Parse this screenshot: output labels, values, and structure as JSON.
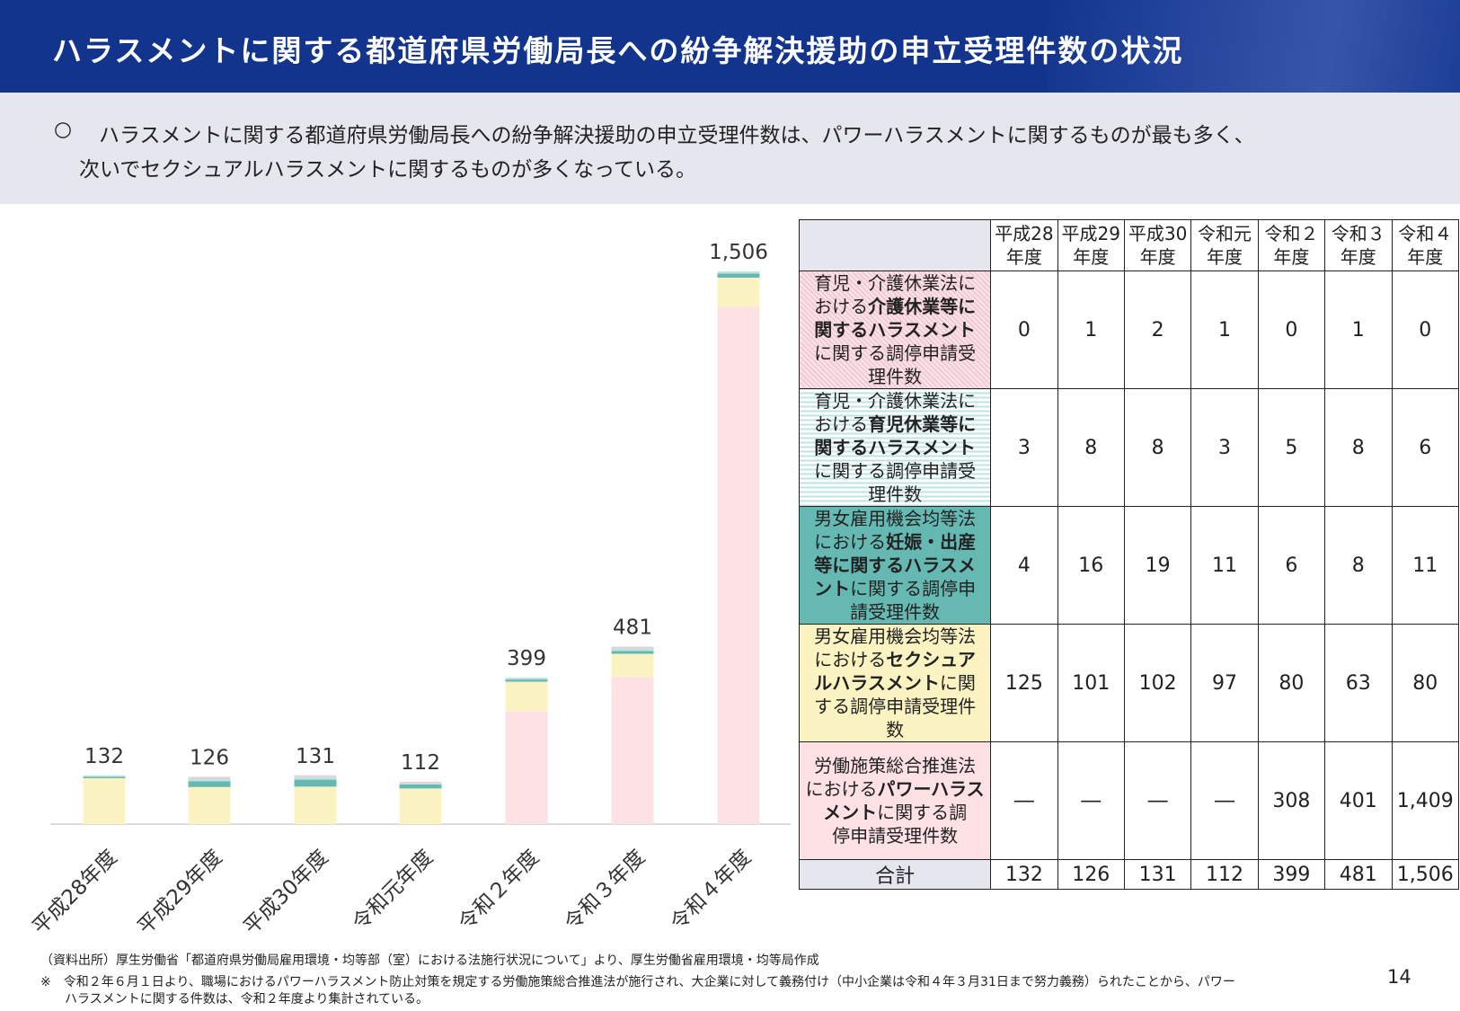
{
  "header": {
    "title": "ハラスメントに関する都道府県労働局長への紛争解決援助の申立受理件数の状況"
  },
  "summary": {
    "mark": "○",
    "line1": "ハラスメントに関する都道府県労働局長への紛争解決援助の申立受理件数は、パワーハラスメントに関するものが最も多く、",
    "line2": "次いでセクシュアルハラスメントに関するものが多くなっている。"
  },
  "colors": {
    "header_bg": "#13348c",
    "power": "#fde1e5",
    "sexual": "#fbf4c2",
    "pregnancy": "#66b8b2",
    "childcare": "#bfe3e0",
    "caregiving": "#f3c9d2"
  },
  "chart_data": {
    "type": "bar",
    "stacked": true,
    "categories": [
      "平成28年度",
      "平成29年度",
      "平成30年度",
      "令和元年度",
      "令和２年度",
      "令和３年度",
      "令和４年度"
    ],
    "series": [
      {
        "name": "労働施策総合推進法におけるパワーハラスメントに関する調停申請受理件数",
        "values": [
          0,
          0,
          0,
          0,
          308,
          401,
          1409
        ]
      },
      {
        "name": "男女雇用機会均等法におけるセクシュアルハラスメントに関する調停申請受理件数",
        "values": [
          125,
          101,
          102,
          97,
          80,
          63,
          80
        ]
      },
      {
        "name": "男女雇用機会均等法における妊娠・出産等に関するハラスメントに関する調停申請受理件数",
        "values": [
          4,
          16,
          19,
          11,
          6,
          8,
          11
        ]
      },
      {
        "name": "育児・介護休業法における育児休業等に関するハラスメントに関する調停申請受理件数",
        "values": [
          3,
          8,
          8,
          3,
          5,
          8,
          6
        ]
      },
      {
        "name": "育児・介護休業法における介護休業等に関するハラスメントに関する調停申請受理件数",
        "values": [
          0,
          1,
          2,
          1,
          0,
          1,
          0
        ]
      }
    ],
    "totals": [
      132,
      126,
      131,
      112,
      399,
      481,
      1506
    ],
    "total_labels": [
      "132",
      "126",
      "131",
      "112",
      "399",
      "481",
      "1,506"
    ],
    "ylim": [
      0,
      1620
    ],
    "title": "",
    "xlabel": "",
    "ylabel": ""
  },
  "table": {
    "headers": [
      [
        "平成28",
        "年度"
      ],
      [
        "平成29",
        "年度"
      ],
      [
        "平成30",
        "年度"
      ],
      [
        "令和元",
        "年度"
      ],
      [
        "令和２",
        "年度"
      ],
      [
        "令和３",
        "年度"
      ],
      [
        "令和４",
        "年度"
      ]
    ],
    "rows": [
      {
        "label": [
          "育児・介護休業法に",
          "おける",
          "介護休業等に",
          "関するハラスメント",
          "に関する調停申請受",
          "理件数"
        ],
        "values": [
          "0",
          "1",
          "2",
          "1",
          "0",
          "1",
          "0"
        ]
      },
      {
        "label": [
          "育児・介護休業法に",
          "おける",
          "育児休業等に",
          "関するハラスメント",
          "に関する調停申請受",
          "理件数"
        ],
        "values": [
          "3",
          "8",
          "8",
          "3",
          "5",
          "8",
          "6"
        ]
      },
      {
        "label": [
          "男女雇用機会均等法",
          "における",
          "妊娠・出産",
          "等に関するハラスメ",
          "ント",
          "に関する調停申",
          "請受理件数"
        ],
        "values": [
          "4",
          "16",
          "19",
          "11",
          "6",
          "8",
          "11"
        ]
      },
      {
        "label": [
          "男女雇用機会均等法",
          "における",
          "セクシュア",
          "ルハラスメント",
          "に関",
          "する調停申請受理件",
          "数"
        ],
        "values": [
          "125",
          "101",
          "102",
          "97",
          "80",
          "63",
          "80"
        ]
      },
      {
        "label": [
          "労働施策総合推進法",
          "における",
          "パワーハラス",
          "メント",
          "に関する調",
          "停申請受理件数"
        ],
        "values": [
          "―",
          "―",
          "―",
          "―",
          "308",
          "401",
          "1,409"
        ]
      }
    ],
    "total_label": "合計",
    "totals": [
      "132",
      "126",
      "131",
      "112",
      "399",
      "481",
      "1,506"
    ]
  },
  "footnotes": {
    "source": "（資料出所）厚生労働省「都道府県労働局雇用環境・均等部（室）における法施行状況について」より、厚生労働省雇用環境・均等局作成",
    "note1": "※　令和２年６月１日より、職場におけるパワーハラスメント防止対策を規定する労働施策総合推進法が施行され、大企業に対して義務付け（中小企業は令和４年３月31日まで努力義務）られたことから、パワー",
    "note2": "ハラスメントに関する件数は、令和２年度より集計されている。"
  },
  "page_number": "14"
}
